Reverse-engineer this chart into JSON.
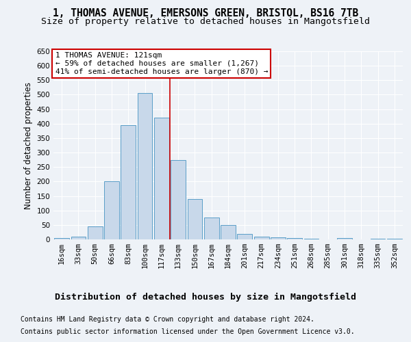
{
  "title_line1": "1, THOMAS AVENUE, EMERSONS GREEN, BRISTOL, BS16 7TB",
  "title_line2": "Size of property relative to detached houses in Mangotsfield",
  "xlabel": "Distribution of detached houses by size in Mangotsfield",
  "ylabel": "Number of detached properties",
  "footer_line1": "Contains HM Land Registry data © Crown copyright and database right 2024.",
  "footer_line2": "Contains public sector information licensed under the Open Government Licence v3.0.",
  "annotation_line1": "1 THOMAS AVENUE: 121sqm",
  "annotation_line2": "← 59% of detached houses are smaller (1,267)",
  "annotation_line3": "41% of semi-detached houses are larger (870) →",
  "bar_color": "#c8d8ea",
  "bar_edge_color": "#5a9ec8",
  "marker_color": "#cc0000",
  "annotation_edge_color": "#cc0000",
  "categories": [
    "16sqm",
    "33sqm",
    "50sqm",
    "66sqm",
    "83sqm",
    "100sqm",
    "117sqm",
    "133sqm",
    "150sqm",
    "167sqm",
    "184sqm",
    "201sqm",
    "217sqm",
    "234sqm",
    "251sqm",
    "268sqm",
    "285sqm",
    "301sqm",
    "318sqm",
    "335sqm",
    "352sqm"
  ],
  "values": [
    5,
    10,
    45,
    200,
    395,
    505,
    420,
    275,
    140,
    75,
    50,
    20,
    10,
    8,
    5,
    2,
    0,
    5,
    0,
    3,
    2
  ],
  "ylim": [
    0,
    650
  ],
  "yticks": [
    0,
    50,
    100,
    150,
    200,
    250,
    300,
    350,
    400,
    450,
    500,
    550,
    600,
    650
  ],
  "background_color": "#eef2f7",
  "grid_color": "#ffffff",
  "title_fontsize": 10.5,
  "subtitle_fontsize": 9.5,
  "ylabel_fontsize": 8.5,
  "xlabel_fontsize": 9.5,
  "tick_fontsize": 7.5,
  "footer_fontsize": 7,
  "annotation_fontsize": 8,
  "line_x_index": 6.5
}
